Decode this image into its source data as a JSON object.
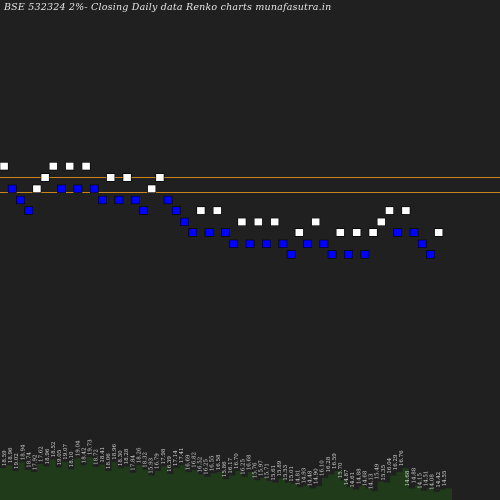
{
  "chart_data": {
    "type": "renko",
    "title": "BSE 532324  2%-  Closing Daily data Renko  charts munafasutra.in",
    "colors": {
      "background": "#202020",
      "up_brick": "#ffffff",
      "down_brick": "#0000ff",
      "resistance_line": "#c8821e",
      "volume_fill": "#1f3b1a"
    },
    "price_axis": {
      "top_value": 20.6,
      "bottom_value": 14.2
    },
    "resistance_lines": [
      18.08,
      17.84
    ],
    "bricks": [
      {
        "dir": "up",
        "price": 18.26
      },
      {
        "dir": "down",
        "price": 17.9
      },
      {
        "dir": "down",
        "price": 17.72
      },
      {
        "dir": "down",
        "price": 17.55
      },
      {
        "dir": "up",
        "price": 17.9
      },
      {
        "dir": "up",
        "price": 18.08
      },
      {
        "dir": "up",
        "price": 18.26
      },
      {
        "dir": "down",
        "price": 17.9
      },
      {
        "dir": "up",
        "price": 18.26
      },
      {
        "dir": "down",
        "price": 17.9
      },
      {
        "dir": "up",
        "price": 18.26
      },
      {
        "dir": "down",
        "price": 17.9
      },
      {
        "dir": "down",
        "price": 17.72
      },
      {
        "dir": "up",
        "price": 18.08
      },
      {
        "dir": "down",
        "price": 17.72
      },
      {
        "dir": "up",
        "price": 18.08
      },
      {
        "dir": "down",
        "price": 17.72
      },
      {
        "dir": "down",
        "price": 17.55
      },
      {
        "dir": "up",
        "price": 17.9
      },
      {
        "dir": "up",
        "price": 18.08
      },
      {
        "dir": "down",
        "price": 17.72
      },
      {
        "dir": "down",
        "price": 17.55
      },
      {
        "dir": "down",
        "price": 17.37
      },
      {
        "dir": "down",
        "price": 17.2
      },
      {
        "dir": "up",
        "price": 17.55
      },
      {
        "dir": "down",
        "price": 17.2
      },
      {
        "dir": "up",
        "price": 17.55
      },
      {
        "dir": "down",
        "price": 17.2
      },
      {
        "dir": "down",
        "price": 17.02
      },
      {
        "dir": "up",
        "price": 17.37
      },
      {
        "dir": "down",
        "price": 17.02
      },
      {
        "dir": "up",
        "price": 17.37
      },
      {
        "dir": "down",
        "price": 17.02
      },
      {
        "dir": "up",
        "price": 17.37
      },
      {
        "dir": "down",
        "price": 17.02
      },
      {
        "dir": "down",
        "price": 16.85
      },
      {
        "dir": "up",
        "price": 17.2
      },
      {
        "dir": "down",
        "price": 17.02
      },
      {
        "dir": "up",
        "price": 17.37
      },
      {
        "dir": "down",
        "price": 17.02
      },
      {
        "dir": "down",
        "price": 16.85
      },
      {
        "dir": "up",
        "price": 17.2
      },
      {
        "dir": "down",
        "price": 16.85
      },
      {
        "dir": "up",
        "price": 17.2
      },
      {
        "dir": "down",
        "price": 16.85
      },
      {
        "dir": "up",
        "price": 17.2
      },
      {
        "dir": "up",
        "price": 17.37
      },
      {
        "dir": "up",
        "price": 17.55
      },
      {
        "dir": "down",
        "price": 17.2
      },
      {
        "dir": "up",
        "price": 17.55
      },
      {
        "dir": "down",
        "price": 17.2
      },
      {
        "dir": "down",
        "price": 17.02
      },
      {
        "dir": "down",
        "price": 16.85
      },
      {
        "dir": "up",
        "price": 17.2
      }
    ],
    "volume_price_labels": [
      "18.59",
      "18.96",
      "19.02",
      "18.94",
      "18.74",
      "17.92",
      "17.62",
      "18.96",
      "18.52",
      "19.05",
      "19.07",
      "18.10",
      "19.04",
      "18.42",
      "19.73",
      "18.72",
      "18.41",
      "18.06",
      "18.96",
      "18.30",
      "18.28",
      "17.84",
      "18.26",
      "18.32",
      "15.93",
      "16.79",
      "17.98",
      "16.39",
      "17.14",
      "17.41",
      "16.69",
      "16.82",
      "16.52",
      "16.25",
      "16.55",
      "16.58",
      "15.86",
      "16.17",
      "16.70",
      "16.25",
      "16.68",
      "15.76",
      "15.97",
      "15.71",
      "15.61",
      "15.89",
      "15.53",
      "15.01",
      "14.81",
      "14.93",
      "14.48",
      "14.90",
      "16.10",
      "16.28",
      "16.59",
      "15.70",
      "14.87",
      "14.61",
      "14.88",
      "14.68",
      "14.13",
      "15.49",
      "15.35",
      "16.04",
      "16.29",
      "16.76",
      "14.68",
      "14.88",
      "14.15",
      "14.51",
      "14.08",
      "14.42",
      "14.55"
    ],
    "volume_levels": [
      0.55,
      0.6,
      0.5,
      0.65,
      0.52,
      0.48,
      0.62,
      0.58,
      0.7,
      0.56,
      0.66,
      0.53,
      0.72,
      0.6,
      0.74,
      0.57,
      0.61,
      0.5,
      0.66,
      0.55,
      0.58,
      0.47,
      0.6,
      0.52,
      0.42,
      0.5,
      0.58,
      0.45,
      0.55,
      0.6,
      0.48,
      0.52,
      0.44,
      0.4,
      0.46,
      0.48,
      0.36,
      0.42,
      0.5,
      0.4,
      0.48,
      0.34,
      0.38,
      0.33,
      0.3,
      0.37,
      0.3,
      0.28,
      0.22,
      0.25,
      0.2,
      0.24,
      0.38,
      0.44,
      0.5,
      0.34,
      0.22,
      0.18,
      0.24,
      0.2,
      0.15,
      0.32,
      0.3,
      0.42,
      0.48,
      0.55,
      0.2,
      0.25,
      0.16,
      0.2,
      0.14,
      0.18,
      0.2
    ]
  }
}
